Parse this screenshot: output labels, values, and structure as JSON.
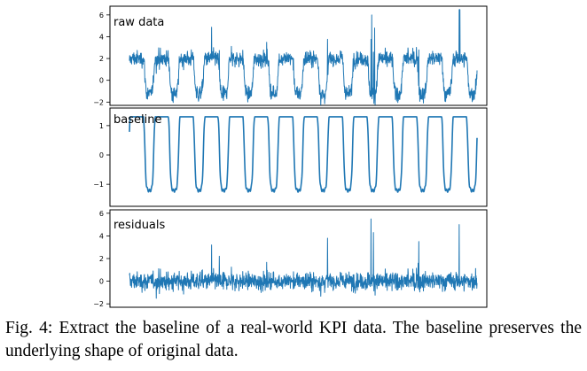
{
  "chart_data": [
    {
      "type": "line",
      "label": "raw data",
      "ylim": [
        -2.3,
        6.8
      ],
      "yticks": [
        -2,
        0,
        2,
        4,
        6
      ],
      "series": [
        {
          "x_range": [
            0,
            1440
          ],
          "periods": 14,
          "amplitude": [
            -1.5,
            1.5
          ],
          "noise": "high",
          "peak": 6.5
        }
      ]
    },
    {
      "type": "line",
      "label": "baseline",
      "ylim": [
        -1.75,
        1.6
      ],
      "yticks": [
        -1,
        0,
        1
      ],
      "series": [
        {
          "x_range": [
            0,
            1440
          ],
          "periods": 14,
          "high": 1.2,
          "low": -1.6
        }
      ]
    },
    {
      "type": "line",
      "label": "residuals",
      "ylim": [
        -2.3,
        6.3
      ],
      "yticks": [
        -2,
        0,
        2,
        4,
        6
      ],
      "series": [
        {
          "x_range": [
            0,
            1440
          ],
          "noise": "high",
          "mean": 0,
          "peak": 5.5
        }
      ]
    }
  ],
  "caption": "Fig. 4: Extract the baseline of a real-world KPI data. The baseline preserves the underlying shape of original data.",
  "colors": {
    "line": "#1f77b4"
  }
}
